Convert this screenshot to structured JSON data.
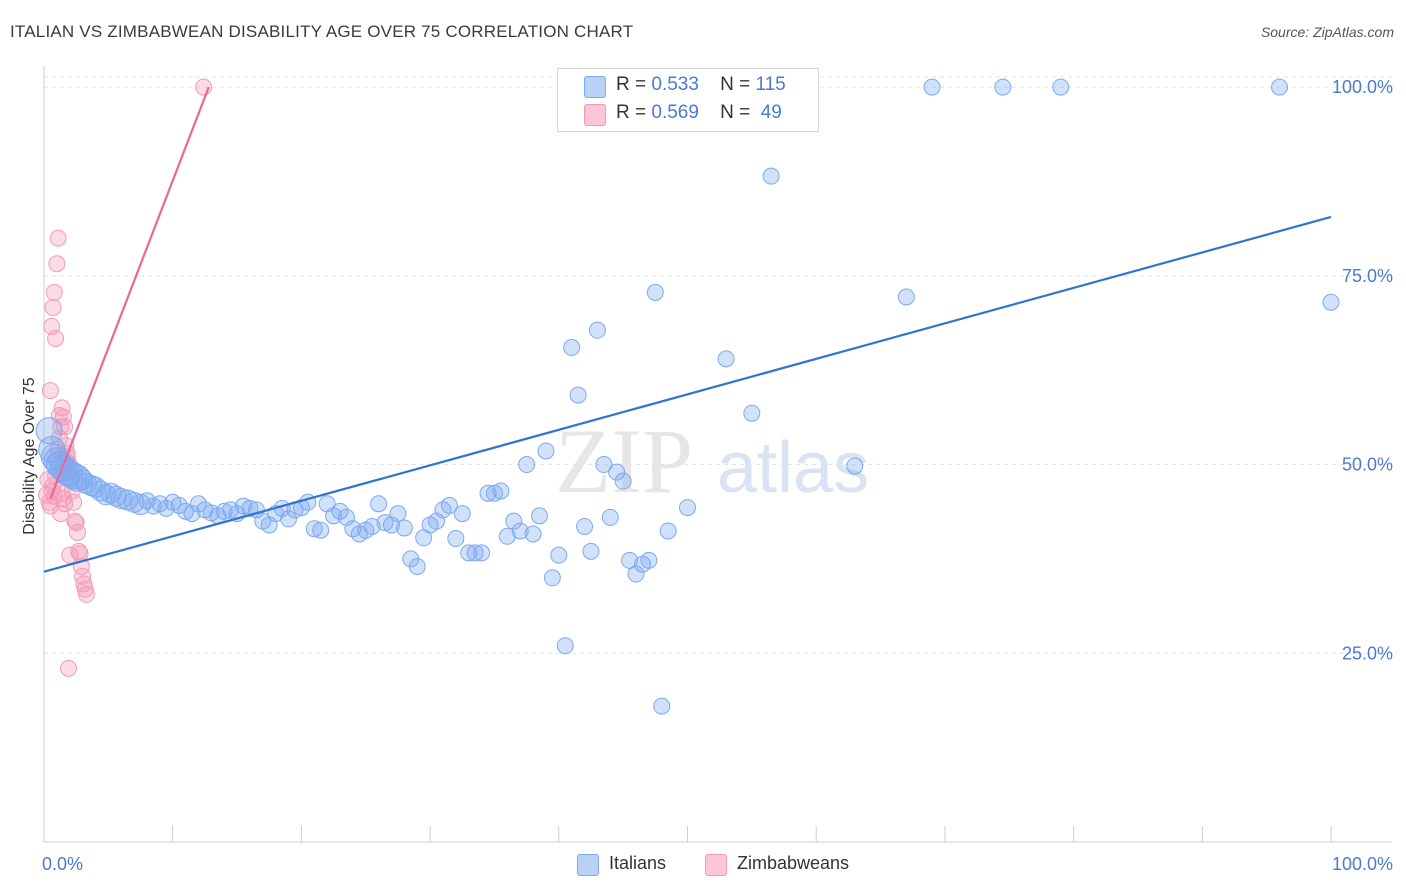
{
  "title": "ITALIAN VS ZIMBABWEAN DISABILITY AGE OVER 75 CORRELATION CHART",
  "source": "Source: ZipAtlas.com",
  "watermark": {
    "zip": "ZIP",
    "atlas": "atlas"
  },
  "legend": {
    "r_label": "R =",
    "n_label": "N =",
    "italians": {
      "r": "0.533",
      "n": "115",
      "color": "#7baaf0"
    },
    "zimbabweans": {
      "r": "0.569",
      "n": "49",
      "color": "#f49ab8"
    }
  },
  "bottom_legend": {
    "italians": "Italians",
    "zimbabweans": "Zimbabweans"
  },
  "chart_data": {
    "type": "scatter",
    "title": "ITALIAN VS ZIMBABWEAN DISABILITY AGE OVER 75 CORRELATION CHART",
    "xlabel": "",
    "ylabel": "Disability Age Over 75",
    "xlim": [
      0,
      100
    ],
    "ylim": [
      0,
      102
    ],
    "x_tick_labels": [
      "0.0%",
      "100.0%"
    ],
    "y_tick_labels": [
      "25.0%",
      "50.0%",
      "75.0%",
      "100.0%"
    ],
    "y_ticks": [
      25,
      50,
      75,
      100
    ],
    "grid": true,
    "legend_position": "top-center",
    "series": [
      {
        "name": "Italians",
        "color": "#7baaf0",
        "trend": {
          "x": [
            0,
            100
          ],
          "y": [
            35.8,
            82.8
          ]
        },
        "points": [
          [
            0.4,
            54.5
          ],
          [
            0.6,
            52
          ],
          [
            0.8,
            51
          ],
          [
            1.0,
            50.5
          ],
          [
            1.2,
            50
          ],
          [
            1.5,
            49.5
          ],
          [
            1.8,
            49
          ],
          [
            2.0,
            48.8
          ],
          [
            2.3,
            48.5
          ],
          [
            2.6,
            48.2
          ],
          [
            3.0,
            48
          ],
          [
            3.3,
            47.5
          ],
          [
            3.7,
            47.2
          ],
          [
            4.0,
            47
          ],
          [
            4.4,
            46.5
          ],
          [
            4.8,
            46
          ],
          [
            5.2,
            46.2
          ],
          [
            5.6,
            45.8
          ],
          [
            6.0,
            45.5
          ],
          [
            6.5,
            45.3
          ],
          [
            7.0,
            45
          ],
          [
            7.5,
            44.7
          ],
          [
            8.0,
            45.2
          ],
          [
            8.5,
            44.5
          ],
          [
            9.0,
            44.8
          ],
          [
            9.5,
            44.2
          ],
          [
            10.0,
            45
          ],
          [
            10.5,
            44.6
          ],
          [
            11.0,
            43.8
          ],
          [
            11.5,
            43.5
          ],
          [
            12.0,
            44.8
          ],
          [
            12.5,
            44
          ],
          [
            13.0,
            43.6
          ],
          [
            13.5,
            43.2
          ],
          [
            14.0,
            43.8
          ],
          [
            14.5,
            44
          ],
          [
            15.0,
            43.5
          ],
          [
            15.5,
            44.5
          ],
          [
            16.0,
            44.2
          ],
          [
            16.5,
            44
          ],
          [
            17.0,
            42.5
          ],
          [
            17.5,
            42
          ],
          [
            18.0,
            43.5
          ],
          [
            18.5,
            44.2
          ],
          [
            19.0,
            42.8
          ],
          [
            19.5,
            44
          ],
          [
            20.0,
            44.3
          ],
          [
            20.5,
            45
          ],
          [
            21.0,
            41.5
          ],
          [
            21.5,
            41.3
          ],
          [
            22.0,
            44.8
          ],
          [
            22.5,
            43.2
          ],
          [
            23.0,
            43.8
          ],
          [
            23.5,
            43
          ],
          [
            24.0,
            41.5
          ],
          [
            24.5,
            40.8
          ],
          [
            25.0,
            41.3
          ],
          [
            25.5,
            41.8
          ],
          [
            26.0,
            44.8
          ],
          [
            26.5,
            42.3
          ],
          [
            27.0,
            42
          ],
          [
            27.5,
            43.5
          ],
          [
            28.0,
            41.6
          ],
          [
            28.5,
            37.5
          ],
          [
            29.0,
            36.5
          ],
          [
            29.5,
            40.3
          ],
          [
            30.0,
            42
          ],
          [
            30.5,
            42.5
          ],
          [
            31.0,
            44
          ],
          [
            31.5,
            44.6
          ],
          [
            32.0,
            40.2
          ],
          [
            32.5,
            43.5
          ],
          [
            33.0,
            38.3
          ],
          [
            33.5,
            38.3
          ],
          [
            34.0,
            38.3
          ],
          [
            34.5,
            46.2
          ],
          [
            35.0,
            46.2
          ],
          [
            35.5,
            46.5
          ],
          [
            36.0,
            40.5
          ],
          [
            36.5,
            42.5
          ],
          [
            37.0,
            41.2
          ],
          [
            37.5,
            50
          ],
          [
            38.0,
            40.8
          ],
          [
            38.5,
            43.2
          ],
          [
            39.0,
            51.8
          ],
          [
            39.5,
            35
          ],
          [
            40.0,
            38
          ],
          [
            40.5,
            26
          ],
          [
            41.0,
            65.5
          ],
          [
            41.5,
            59.2
          ],
          [
            42.0,
            41.8
          ],
          [
            42.5,
            38.5
          ],
          [
            43.0,
            67.8
          ],
          [
            43.5,
            50
          ],
          [
            44.0,
            43
          ],
          [
            44.5,
            49
          ],
          [
            45.0,
            47.8
          ],
          [
            45.5,
            37.3
          ],
          [
            46.0,
            35.5
          ],
          [
            46.5,
            36.8
          ],
          [
            47.0,
            37.3
          ],
          [
            47.5,
            72.8
          ],
          [
            48.0,
            18
          ],
          [
            48.5,
            41.2
          ],
          [
            50.0,
            44.3
          ],
          [
            53.0,
            64
          ],
          [
            55.0,
            56.8
          ],
          [
            56.5,
            88.2
          ],
          [
            63.0,
            49.8
          ],
          [
            67.0,
            72.2
          ],
          [
            69.0,
            100
          ],
          [
            74.5,
            100
          ],
          [
            79.0,
            100
          ],
          [
            96.0,
            100
          ],
          [
            100.0,
            71.5
          ]
        ]
      },
      {
        "name": "Zimbabweans",
        "color": "#f49ab8",
        "trend": {
          "x": [
            0.5,
            12.8
          ],
          "y": [
            45.5,
            100
          ]
        },
        "points": [
          [
            0.2,
            46
          ],
          [
            0.3,
            48
          ],
          [
            0.4,
            45
          ],
          [
            0.5,
            44.5
          ],
          [
            0.6,
            46.5
          ],
          [
            0.7,
            47.2
          ],
          [
            0.8,
            45.8
          ],
          [
            0.9,
            48.5
          ],
          [
            1.0,
            50.5
          ],
          [
            1.1,
            52
          ],
          [
            1.2,
            53.5
          ],
          [
            1.3,
            55
          ],
          [
            1.4,
            57.5
          ],
          [
            1.5,
            56.3
          ],
          [
            1.6,
            55
          ],
          [
            1.7,
            52.5
          ],
          [
            1.8,
            51
          ],
          [
            1.9,
            50.2
          ],
          [
            2.0,
            49
          ],
          [
            2.1,
            48
          ],
          [
            2.2,
            46.5
          ],
          [
            2.3,
            45
          ],
          [
            2.4,
            42.5
          ],
          [
            2.5,
            42.3
          ],
          [
            2.6,
            41
          ],
          [
            2.7,
            38.5
          ],
          [
            2.8,
            38.2
          ],
          [
            2.9,
            36.5
          ],
          [
            3.0,
            35.2
          ],
          [
            3.1,
            34.2
          ],
          [
            3.2,
            33.5
          ],
          [
            3.3,
            32.8
          ],
          [
            0.5,
            59.8
          ],
          [
            0.6,
            68.3
          ],
          [
            0.7,
            70.8
          ],
          [
            0.8,
            72.8
          ],
          [
            0.9,
            66.7
          ],
          [
            1.0,
            76.6
          ],
          [
            1.1,
            80
          ],
          [
            1.2,
            56.5
          ],
          [
            1.3,
            43.5
          ],
          [
            1.4,
            46.2
          ],
          [
            1.5,
            45.5
          ],
          [
            1.6,
            44.8
          ],
          [
            1.7,
            50.5
          ],
          [
            1.8,
            51.5
          ],
          [
            1.9,
            23
          ],
          [
            2.0,
            38
          ],
          [
            12.4,
            100
          ]
        ]
      }
    ]
  }
}
